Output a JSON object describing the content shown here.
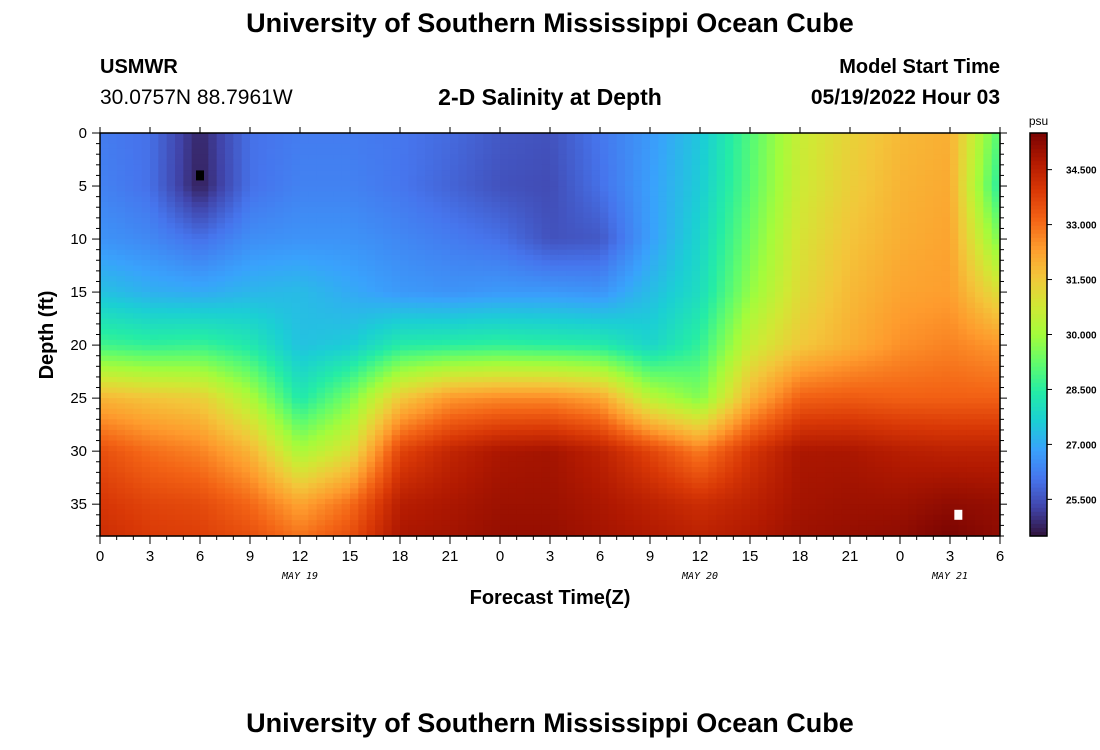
{
  "header": {
    "title": "University of Southern Mississippi Ocean Cube",
    "station_id": "USMWR",
    "station_coords": "30.0757N  88.7961W",
    "plot_title": "2-D Salinity at Depth",
    "model_start_label": "Model Start Time",
    "model_start_value": "05/19/2022 Hour 03"
  },
  "footer": {
    "title": "University of Southern Mississippi Ocean Cube"
  },
  "colors": {
    "colormap": [
      "#30123b",
      "#4145ab",
      "#4675ed",
      "#39a2fc",
      "#1bcfd4",
      "#24eca6",
      "#61fc6c",
      "#a4fc3b",
      "#d1e834",
      "#f3c63a",
      "#fe9b2d",
      "#f36315",
      "#d93806",
      "#b11901",
      "#7a0402"
    ]
  },
  "chart_data": {
    "type": "heatmap",
    "xlabel": "Forecast Time(Z)",
    "ylabel": "Depth (ft)",
    "x_hours_range": [
      0,
      54
    ],
    "x_tick_labels": [
      "0",
      "3",
      "6",
      "9",
      "12",
      "15",
      "18",
      "21",
      "0",
      "3",
      "6",
      "9",
      "12",
      "15",
      "18",
      "21",
      "0",
      "3",
      "6"
    ],
    "date_labels": [
      {
        "label": "MAY 19",
        "hour": 12
      },
      {
        "label": "MAY 20",
        "hour": 36
      },
      {
        "label": "MAY 21",
        "hour": 51
      }
    ],
    "y_range": [
      0,
      38
    ],
    "y_ticks": [
      0,
      5,
      10,
      15,
      20,
      25,
      30,
      35
    ],
    "colorbar": {
      "unit": "psu",
      "range": [
        24.5,
        35.5
      ],
      "ticks": [
        25.5,
        27.0,
        28.5,
        30.0,
        31.5,
        33.0,
        34.5
      ],
      "tick_labels": [
        "25.500",
        "27.000",
        "28.500",
        "30.000",
        "31.500",
        "33.000",
        "34.500"
      ]
    },
    "markers": [
      {
        "color": "#000000",
        "hour": 6,
        "depth": 4
      },
      {
        "color": "#ffffff",
        "hour": 51.5,
        "depth": 36
      }
    ],
    "grid_hours": [
      0,
      3,
      6,
      9,
      12,
      15,
      18,
      21,
      24,
      27,
      30,
      33,
      36,
      39,
      42,
      45,
      48,
      51,
      54
    ],
    "grid_depths": [
      0,
      5,
      10,
      15,
      20,
      25,
      30,
      35,
      38
    ],
    "salinity_psu": [
      [
        26.2,
        26.0,
        24.8,
        26.0,
        26.2,
        26.2,
        26.1,
        25.9,
        25.6,
        25.5,
        26.1,
        26.7,
        27.5,
        29.0,
        30.6,
        31.3,
        31.8,
        32.0,
        29.0
      ],
      [
        26.3,
        26.0,
        24.7,
        26.0,
        26.3,
        26.3,
        26.1,
        25.8,
        25.5,
        25.4,
        26.0,
        26.8,
        27.6,
        29.1,
        30.7,
        31.4,
        31.9,
        32.1,
        28.4
      ],
      [
        26.6,
        26.4,
        26.0,
        26.5,
        26.6,
        26.6,
        26.4,
        26.2,
        26.0,
        25.5,
        25.6,
        26.8,
        27.8,
        29.4,
        30.9,
        31.6,
        32.0,
        32.2,
        29.5
      ],
      [
        27.4,
        27.1,
        27.0,
        27.2,
        27.3,
        27.0,
        26.7,
        26.6,
        26.7,
        26.7,
        26.6,
        27.3,
        28.0,
        29.8,
        31.1,
        31.8,
        32.2,
        32.3,
        31.0
      ],
      [
        28.8,
        28.6,
        28.7,
        28.3,
        27.4,
        27.6,
        28.4,
        28.5,
        28.6,
        28.5,
        28.4,
        27.8,
        28.6,
        30.6,
        31.5,
        32.0,
        32.5,
        32.7,
        32.4
      ],
      [
        31.9,
        31.6,
        31.4,
        30.2,
        28.3,
        29.5,
        31.5,
        32.4,
        32.6,
        32.6,
        32.2,
        30.4,
        29.6,
        31.9,
        33.2,
        33.3,
        33.2,
        33.2,
        33.2
      ],
      [
        33.5,
        33.0,
        32.7,
        31.9,
        30.1,
        31.0,
        33.7,
        34.4,
        34.8,
        34.9,
        34.5,
        33.7,
        32.8,
        34.0,
        34.8,
        34.8,
        34.6,
        34.5,
        34.5
      ],
      [
        34.0,
        33.7,
        33.6,
        33.1,
        32.2,
        33.0,
        34.6,
        34.8,
        35.0,
        35.0,
        34.8,
        34.5,
        34.2,
        34.5,
        34.9,
        35.0,
        35.0,
        35.2,
        35.1
      ],
      [
        34.2,
        33.9,
        33.8,
        33.5,
        32.9,
        33.5,
        34.8,
        34.9,
        35.1,
        35.1,
        34.9,
        34.7,
        34.5,
        34.7,
        35.0,
        35.1,
        35.2,
        35.5,
        35.2
      ]
    ]
  }
}
